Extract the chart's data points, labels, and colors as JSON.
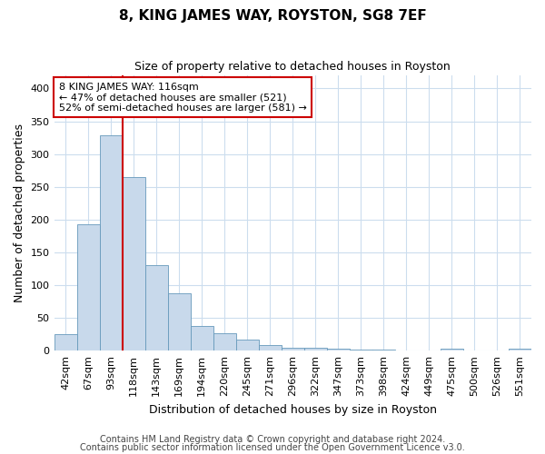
{
  "title": "8, KING JAMES WAY, ROYSTON, SG8 7EF",
  "subtitle": "Size of property relative to detached houses in Royston",
  "xlabel": "Distribution of detached houses by size in Royston",
  "ylabel": "Number of detached properties",
  "categories": [
    "42sqm",
    "67sqm",
    "93sqm",
    "118sqm",
    "143sqm",
    "169sqm",
    "194sqm",
    "220sqm",
    "245sqm",
    "271sqm",
    "296sqm",
    "322sqm",
    "347sqm",
    "373sqm",
    "398sqm",
    "424sqm",
    "449sqm",
    "475sqm",
    "500sqm",
    "526sqm",
    "551sqm"
  ],
  "values": [
    25,
    193,
    328,
    265,
    130,
    88,
    37,
    26,
    17,
    8,
    5,
    5,
    3,
    2,
    2,
    0,
    0,
    3,
    0,
    0,
    3
  ],
  "bar_color": "#c8d9eb",
  "bar_edge_color": "#6699bb",
  "vline_x": 2.5,
  "vline_color": "#cc0000",
  "ylim": [
    0,
    420
  ],
  "yticks": [
    0,
    50,
    100,
    150,
    200,
    250,
    300,
    350,
    400
  ],
  "annotation_line1": "8 KING JAMES WAY: 116sqm",
  "annotation_line2": "← 47% of detached houses are smaller (521)",
  "annotation_line3": "52% of semi-detached houses are larger (581) →",
  "annotation_box_color": "#ffffff",
  "annotation_box_edge": "#cc0000",
  "footnote1": "Contains HM Land Registry data © Crown copyright and database right 2024.",
  "footnote2": "Contains public sector information licensed under the Open Government Licence v3.0.",
  "title_fontsize": 11,
  "subtitle_fontsize": 9,
  "axis_label_fontsize": 9,
  "tick_fontsize": 8,
  "annotation_fontsize": 8,
  "footnote_fontsize": 7,
  "background_color": "#ffffff",
  "plot_bg_color": "#ffffff",
  "grid_color": "#ccddee"
}
